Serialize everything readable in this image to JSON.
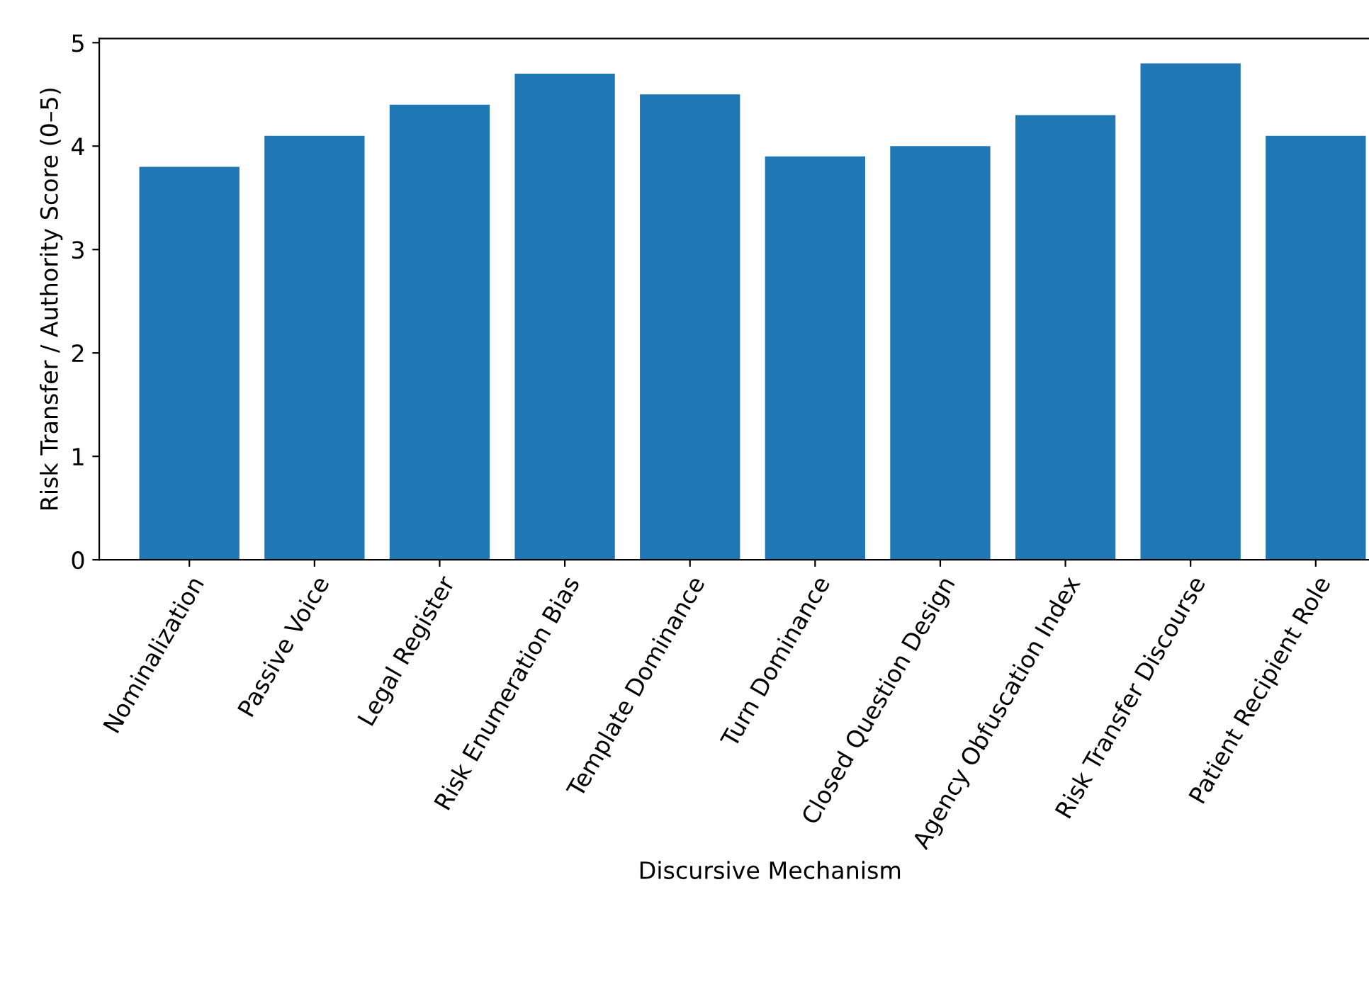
{
  "chart_data": {
    "type": "bar",
    "categories": [
      "Nominalization",
      "Passive Voice",
      "Legal Register",
      "Risk Enumeration Bias",
      "Template Dominance",
      "Turn Dominance",
      "Closed Question Design",
      "Agency Obfuscation Index",
      "Risk Transfer Discourse",
      "Patient Recipient Role"
    ],
    "values": [
      3.8,
      4.1,
      4.4,
      4.7,
      4.5,
      3.9,
      4.0,
      4.3,
      4.8,
      4.1
    ],
    "color": "#1f77b4",
    "xlabel": "Discursive Mechanism",
    "ylabel": "Risk Transfer / Authority Score (0–5)",
    "ylim": [
      0,
      5.04
    ],
    "yticks": [
      0,
      1,
      2,
      3,
      4,
      5
    ],
    "grid": false
  }
}
